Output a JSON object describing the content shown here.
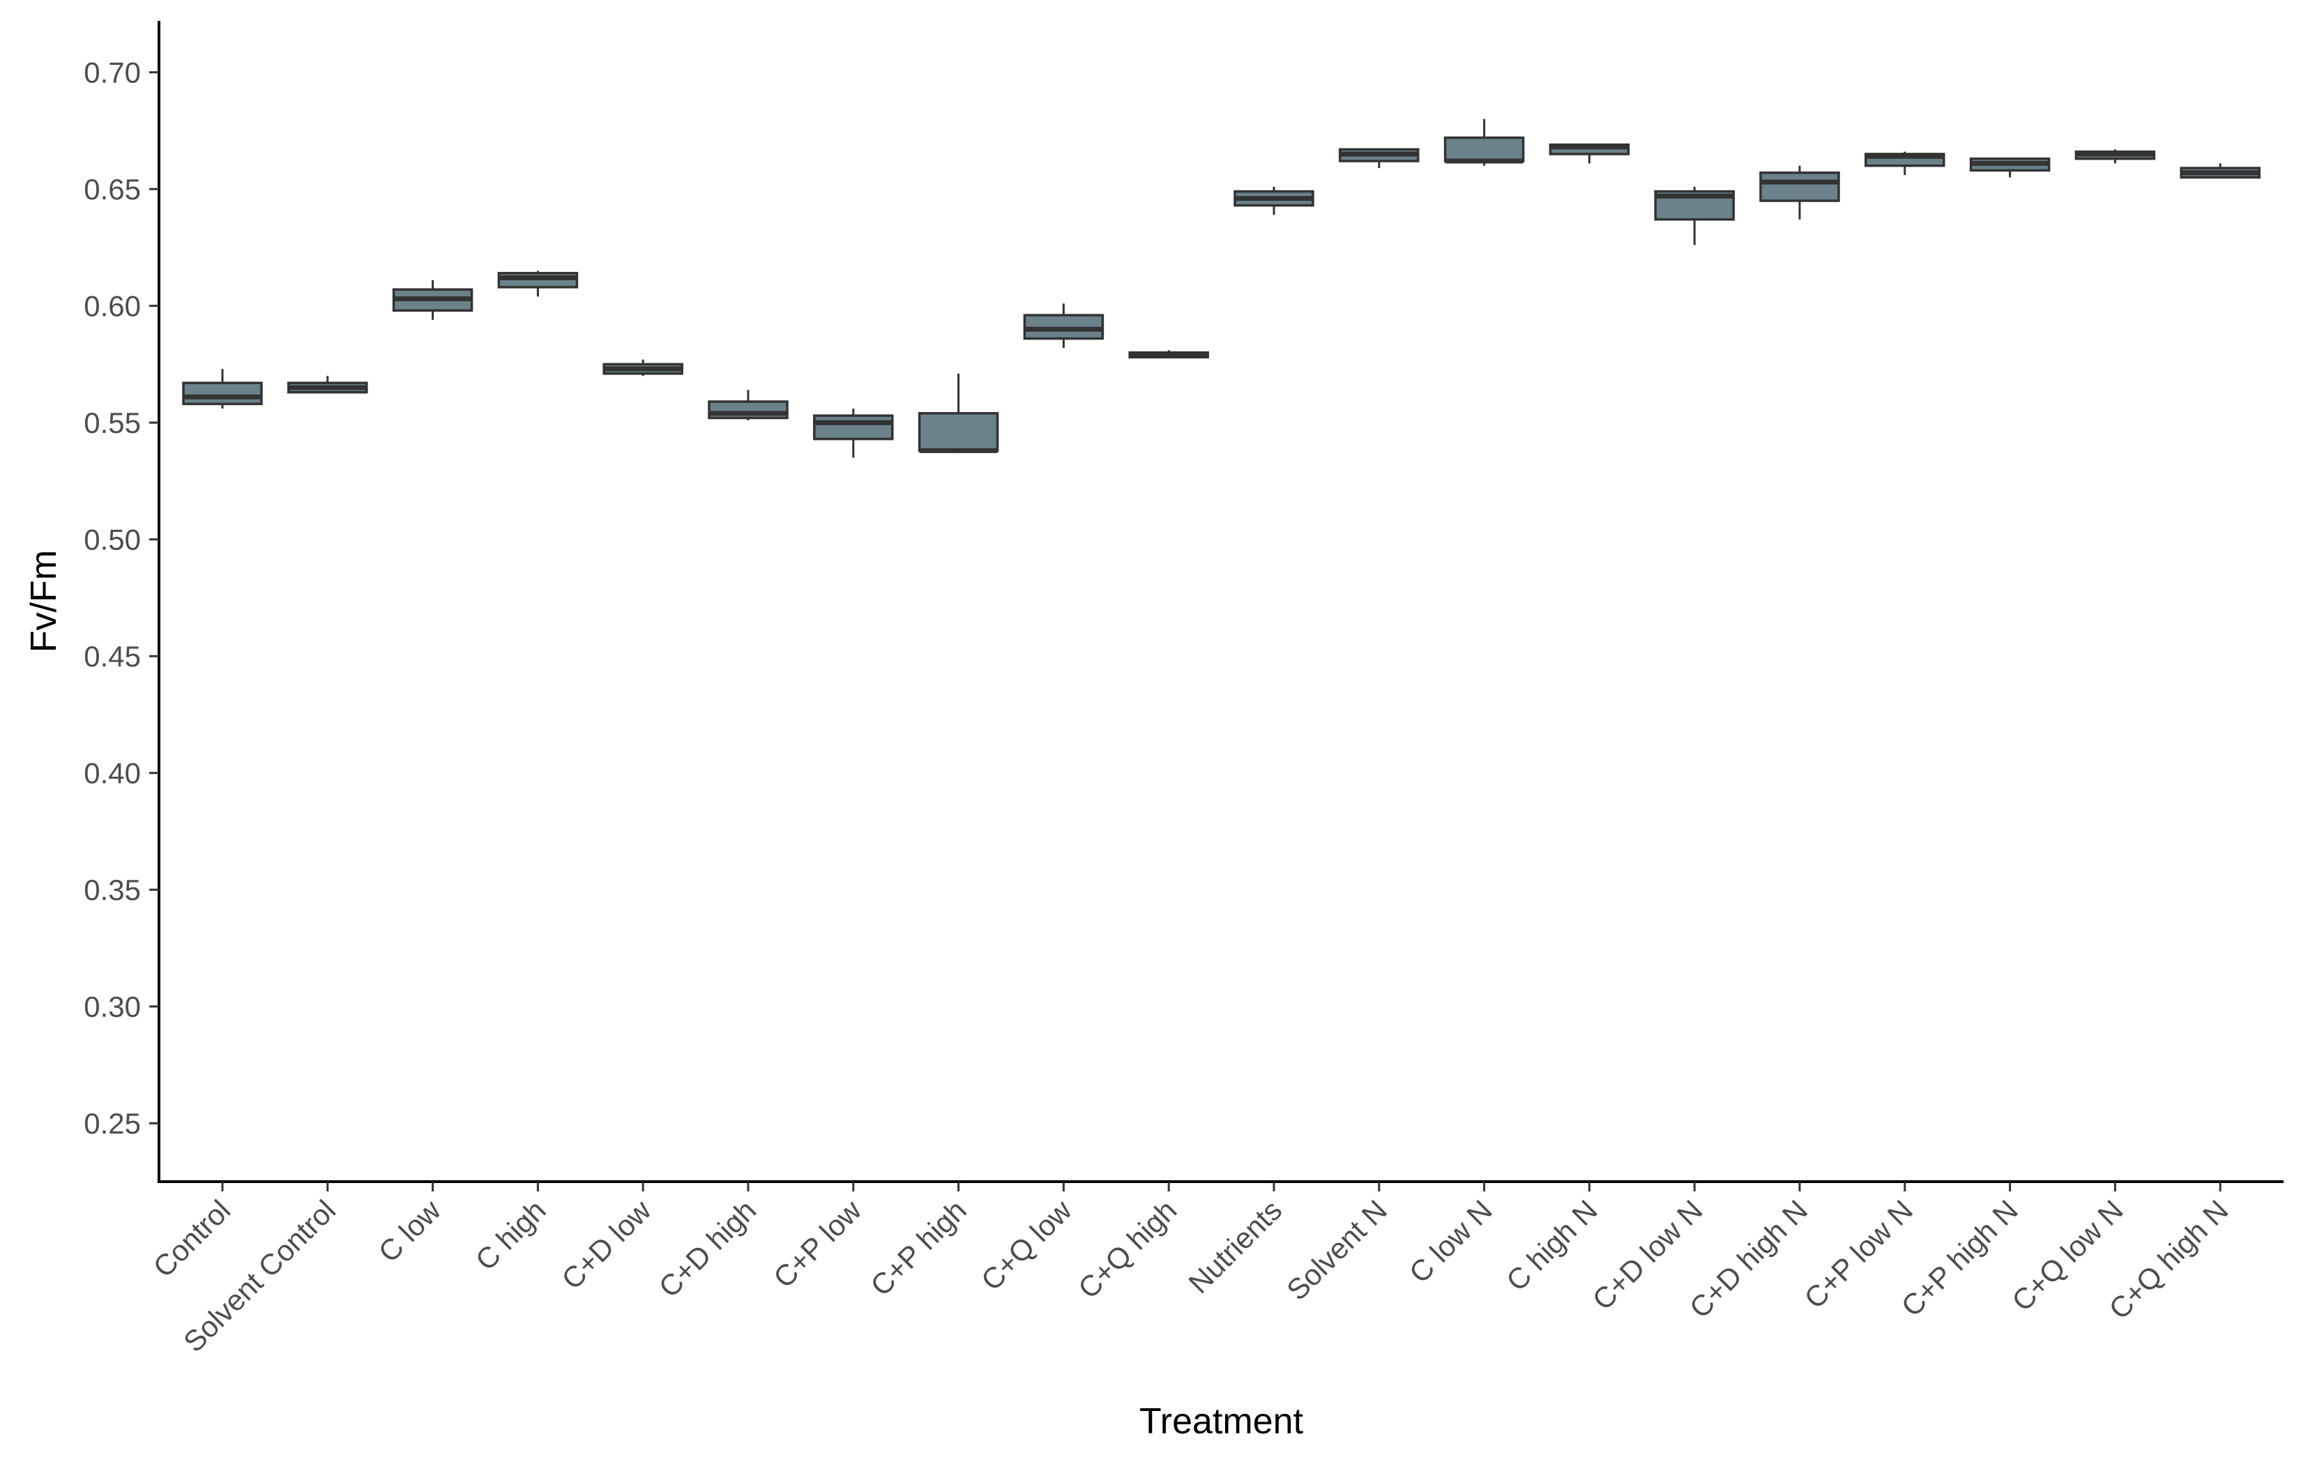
{
  "chart_data": {
    "type": "box",
    "xlabel": "Treatment",
    "ylabel": "Fv/Fm",
    "ylim": [
      0.225,
      0.722
    ],
    "yticks": [
      "0.25",
      "0.30",
      "0.35",
      "0.40",
      "0.45",
      "0.50",
      "0.55",
      "0.60",
      "0.65",
      "0.70"
    ],
    "grid": false,
    "legend": "none",
    "fill_color": "#6b828b",
    "stroke_color": "#333333",
    "categories": [
      "Control",
      "Solvent Control",
      "C low",
      "C high",
      "C+D low",
      "C+D high",
      "C+P low",
      "C+P high",
      "C+Q low",
      "C+Q high",
      "Nutrients",
      "Solvent N",
      "C low N",
      "C high N",
      "C+D low N",
      "C+D high N",
      "C+P low N",
      "C+P high N",
      "C+Q low N",
      "C+Q high N"
    ],
    "boxes": [
      {
        "min": 0.556,
        "q1": 0.558,
        "median": 0.561,
        "q3": 0.567,
        "max": 0.573
      },
      {
        "min": 0.563,
        "q1": 0.563,
        "median": 0.565,
        "q3": 0.567,
        "max": 0.57
      },
      {
        "min": 0.594,
        "q1": 0.598,
        "median": 0.603,
        "q3": 0.607,
        "max": 0.611
      },
      {
        "min": 0.604,
        "q1": 0.608,
        "median": 0.612,
        "q3": 0.614,
        "max": 0.615
      },
      {
        "min": 0.57,
        "q1": 0.571,
        "median": 0.573,
        "q3": 0.575,
        "max": 0.577
      },
      {
        "min": 0.551,
        "q1": 0.552,
        "median": 0.554,
        "q3": 0.559,
        "max": 0.564
      },
      {
        "min": 0.535,
        "q1": 0.543,
        "median": 0.55,
        "q3": 0.553,
        "max": 0.556
      },
      {
        "min": 0.537,
        "q1": 0.538,
        "median": 0.538,
        "q3": 0.554,
        "max": 0.571
      },
      {
        "min": 0.582,
        "q1": 0.586,
        "median": 0.59,
        "q3": 0.596,
        "max": 0.601
      },
      {
        "min": 0.578,
        "q1": 0.578,
        "median": 0.579,
        "q3": 0.58,
        "max": 0.581
      },
      {
        "min": 0.639,
        "q1": 0.643,
        "median": 0.646,
        "q3": 0.649,
        "max": 0.651
      },
      {
        "min": 0.659,
        "q1": 0.662,
        "median": 0.665,
        "q3": 0.667,
        "max": 0.667
      },
      {
        "min": 0.66,
        "q1": 0.662,
        "median": 0.662,
        "q3": 0.672,
        "max": 0.68
      },
      {
        "min": 0.661,
        "q1": 0.665,
        "median": 0.668,
        "q3": 0.669,
        "max": 0.669
      },
      {
        "min": 0.626,
        "q1": 0.637,
        "median": 0.647,
        "q3": 0.649,
        "max": 0.651
      },
      {
        "min": 0.637,
        "q1": 0.645,
        "median": 0.653,
        "q3": 0.657,
        "max": 0.66
      },
      {
        "min": 0.656,
        "q1": 0.66,
        "median": 0.664,
        "q3": 0.665,
        "max": 0.666
      },
      {
        "min": 0.655,
        "q1": 0.658,
        "median": 0.661,
        "q3": 0.663,
        "max": 0.663
      },
      {
        "min": 0.661,
        "q1": 0.663,
        "median": 0.665,
        "q3": 0.666,
        "max": 0.667
      },
      {
        "min": 0.655,
        "q1": 0.655,
        "median": 0.657,
        "q3": 0.659,
        "max": 0.661
      }
    ]
  }
}
